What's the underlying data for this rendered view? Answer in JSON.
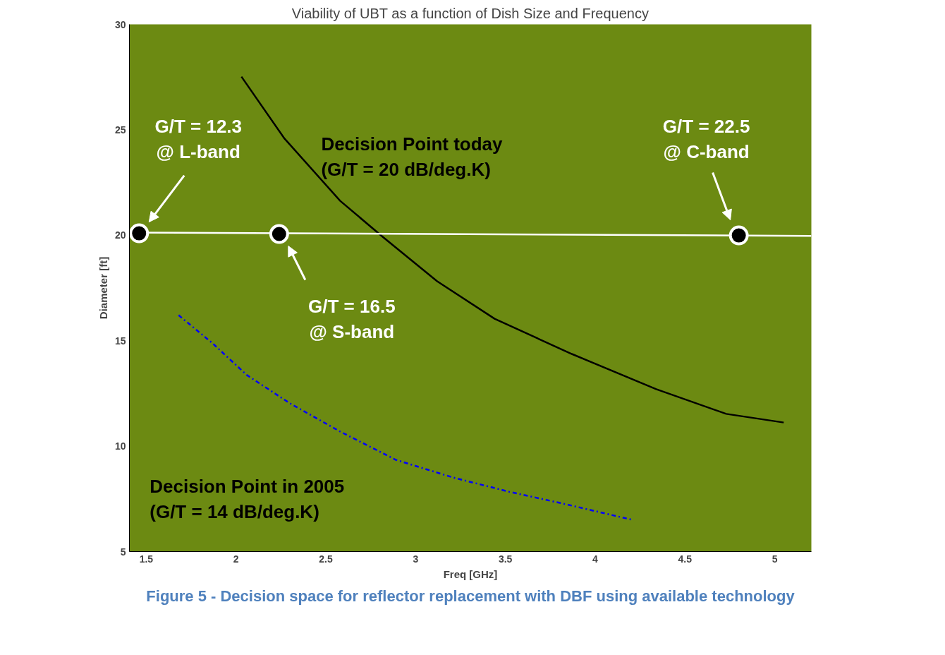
{
  "chart_data": {
    "type": "line",
    "title": "Viability of UBT as a function of Dish Size and Frequency",
    "xlabel": "Freq [GHz]",
    "ylabel": "Diameter [ft]",
    "xlim": [
      1.406,
      5.204
    ],
    "ylim": [
      5,
      30
    ],
    "xticks": [
      1.5,
      2,
      2.5,
      3,
      3.5,
      4,
      4.5,
      5
    ],
    "yticks": [
      5,
      10,
      15,
      20,
      25,
      30
    ],
    "grid": false,
    "series": [
      {
        "name": "Decision Point today\n(G/T = 20 dB/deg.K)",
        "color": "#000000",
        "line_style": "solid",
        "marker": "none",
        "x": [
          2.03,
          2.27,
          2.58,
          2.82,
          3.12,
          3.44,
          3.87,
          4.34,
          4.73,
          5.05
        ],
        "values": [
          27.52,
          24.58,
          21.63,
          19.9,
          17.82,
          16.04,
          14.37,
          12.7,
          11.53,
          11.12
        ]
      },
      {
        "name": "Decision Point in 2005\n(G/T = 14 dB/deg.K)",
        "color": "#0000ff",
        "line_style": "dashdot",
        "marker": "none",
        "x": [
          1.68,
          1.87,
          2.06,
          2.3,
          2.58,
          2.89,
          3.21,
          3.52,
          3.84,
          4.21
        ],
        "values": [
          16.21,
          14.87,
          13.37,
          12.03,
          10.69,
          9.35,
          8.51,
          7.84,
          7.24,
          6.5
        ]
      },
      {
        "color": "#ffffff",
        "line_style": "solid",
        "marker": "none",
        "x": [
          1.406,
          5.204
        ],
        "values": [
          20.13,
          19.97
        ]
      },
      {
        "type": "scatter",
        "color": "#000000",
        "marker": "circle",
        "x": [
          1.46,
          2.24,
          4.8
        ],
        "values": [
          20.09,
          20.06,
          19.99
        ]
      }
    ],
    "annotations": [
      "G/T = 12.3\n@ L-band",
      "G/T = 16.5\n@ S-band",
      "G/T = 22.5\n@ C-band",
      "Figure 5 - Decision space for reflector replacement with DBF using available technology"
    ]
  }
}
